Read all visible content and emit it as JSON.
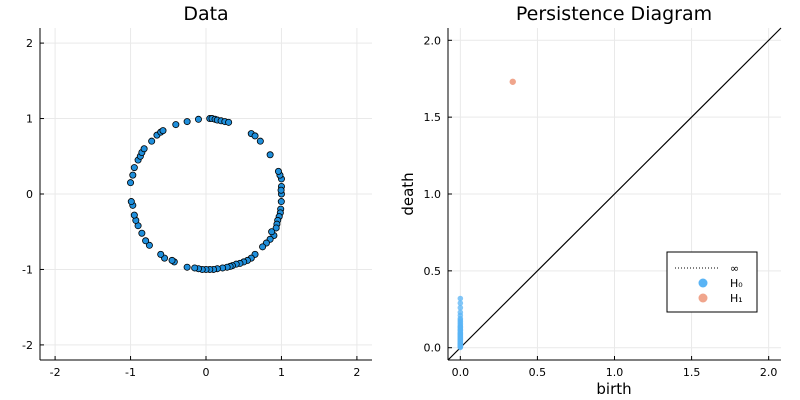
{
  "chart_data": [
    {
      "type": "scatter",
      "title": "Data",
      "xlabel": "",
      "ylabel": "",
      "xlim": [
        -2.2,
        2.2
      ],
      "ylim": [
        -2.2,
        2.2
      ],
      "xticks": [
        "-2",
        "-1",
        "0",
        "1",
        "2"
      ],
      "yticks": [
        "-2",
        "-1",
        "0",
        "1",
        "2"
      ],
      "grid": true,
      "marker_color": "#1f8fdc",
      "marker_edge": "#000000",
      "points_x": [
        1.0,
        1.0,
        1.0,
        0.998,
        0.995,
        0.99,
        0.985,
        0.98,
        0.97,
        0.96,
        0.95,
        0.94,
        0.93,
        0.9,
        0.87,
        0.85,
        0.8,
        0.75,
        0.65,
        0.6,
        0.55,
        0.5,
        0.45,
        0.4,
        0.35,
        0.32,
        0.28,
        0.22,
        0.15,
        0.1,
        0.05,
        0.0,
        -0.05,
        -0.1,
        -0.15,
        -0.25,
        -0.42,
        -0.45,
        -0.55,
        -0.6,
        -0.75,
        -0.8,
        -0.85,
        -0.9,
        -0.93,
        -0.95,
        -0.97,
        -0.99,
        -1.0,
        -0.97,
        -0.95,
        -0.9,
        -0.87,
        -0.85,
        -0.82,
        -0.72,
        -0.65,
        -0.6,
        -0.57,
        -0.4,
        -0.25,
        -0.1,
        0.05,
        0.08,
        0.12,
        0.15,
        0.2,
        0.25,
        0.3,
        0.85,
        0.6,
        0.65,
        0.72
      ],
      "points_y": [
        0.0,
        0.1,
        0.2,
        -0.1,
        0.05,
        -0.2,
        -0.25,
        0.25,
        -0.3,
        0.3,
        -0.35,
        -0.4,
        -0.45,
        -0.55,
        -0.5,
        -0.6,
        -0.65,
        -0.7,
        -0.8,
        -0.85,
        -0.88,
        -0.9,
        -0.92,
        -0.93,
        -0.95,
        -0.96,
        -0.97,
        -0.98,
        -0.99,
        -1.0,
        -1.0,
        -1.0,
        -1.0,
        -0.99,
        -0.98,
        -0.97,
        -0.9,
        -0.88,
        -0.85,
        -0.8,
        -0.68,
        -0.62,
        -0.52,
        -0.42,
        -0.35,
        -0.28,
        -0.15,
        -0.1,
        0.15,
        0.25,
        0.35,
        0.45,
        0.5,
        0.55,
        0.6,
        0.7,
        0.78,
        0.82,
        0.84,
        0.92,
        0.96,
        0.99,
        1.0,
        1.0,
        0.99,
        0.98,
        0.97,
        0.96,
        0.95,
        0.52,
        0.8,
        0.77,
        0.7
      ]
    },
    {
      "type": "scatter",
      "title": "Persistence Diagram",
      "xlabel": "birth",
      "ylabel": "death",
      "xlim": [
        -0.08,
        2.08
      ],
      "ylim": [
        -0.08,
        2.08
      ],
      "xticks": [
        "0.0",
        "0.5",
        "1.0",
        "1.5",
        "2.0"
      ],
      "yticks": [
        "0.0",
        "0.5",
        "1.0",
        "1.5",
        "2.0"
      ],
      "grid": true,
      "diagonal": true,
      "legend_position": "bottom-right",
      "legend": [
        {
          "label": "∞",
          "kind": "dotted-line",
          "color": "#000000"
        },
        {
          "label": "H₀",
          "kind": "marker",
          "color": "#5ab4f5"
        },
        {
          "label": "H₁",
          "kind": "marker",
          "color": "#f0a58c"
        }
      ],
      "series": [
        {
          "name": "H₀",
          "color": "#5ab4f5",
          "x": [
            0,
            0,
            0,
            0,
            0,
            0,
            0,
            0,
            0,
            0,
            0,
            0,
            0,
            0,
            0,
            0,
            0,
            0,
            0,
            0,
            0,
            0,
            0,
            0,
            0,
            0,
            0,
            0,
            0,
            0,
            0,
            0,
            0,
            0,
            0,
            0,
            0,
            0,
            0,
            0
          ],
          "y": [
            0.32,
            0.29,
            0.26,
            0.23,
            0.21,
            0.19,
            0.18,
            0.17,
            0.16,
            0.15,
            0.14,
            0.135,
            0.13,
            0.12,
            0.115,
            0.11,
            0.1,
            0.095,
            0.09,
            0.085,
            0.08,
            0.075,
            0.07,
            0.065,
            0.06,
            0.055,
            0.05,
            0.045,
            0.04,
            0.035,
            0.03,
            0.027,
            0.024,
            0.02,
            0.017,
            0.014,
            0.011,
            0.008,
            0.005,
            0.002
          ]
        },
        {
          "name": "H₁",
          "color": "#f0a58c",
          "x": [
            0.34
          ],
          "y": [
            1.73
          ]
        }
      ]
    }
  ]
}
